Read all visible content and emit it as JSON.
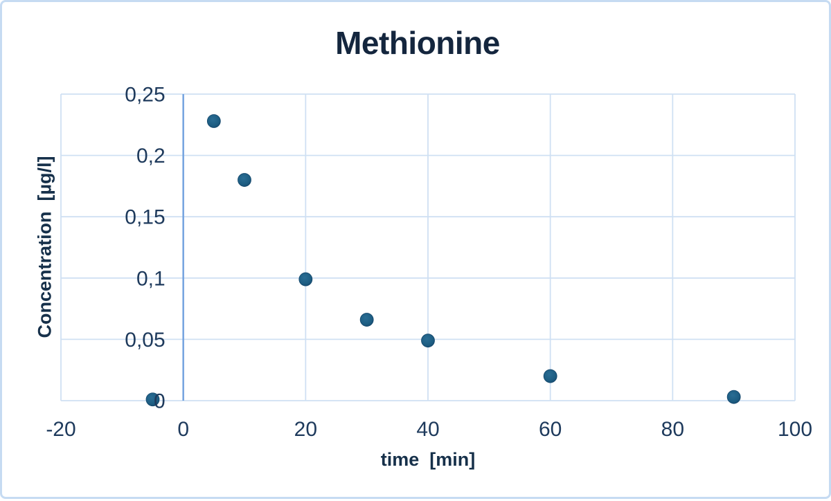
{
  "chart_data": {
    "type": "scatter",
    "title": "Methionine",
    "xlabel": "time  [min]",
    "ylabel": "Concentration  [µg/l]",
    "series": [
      {
        "name": "Methionine",
        "points": [
          {
            "x": -5,
            "y": 0.001
          },
          {
            "x": 5,
            "y": 0.228
          },
          {
            "x": 10,
            "y": 0.18
          },
          {
            "x": 20,
            "y": 0.099
          },
          {
            "x": 30,
            "y": 0.066
          },
          {
            "x": 40,
            "y": 0.049
          },
          {
            "x": 60,
            "y": 0.02
          },
          {
            "x": 90,
            "y": 0.003
          }
        ]
      }
    ],
    "xlim": [
      -20,
      100
    ],
    "ylim": [
      0,
      0.25
    ],
    "xticks": {
      "values": [
        -20,
        0,
        20,
        40,
        60,
        80,
        100
      ],
      "labels": [
        "-20",
        "0",
        "20",
        "40",
        "60",
        "80",
        "100"
      ]
    },
    "yticks": {
      "values": [
        0,
        0.05,
        0.1,
        0.15,
        0.2,
        0.25
      ],
      "labels": [
        "0",
        "0,05",
        "0,1",
        "0,15",
        "0,2",
        "0,25"
      ]
    },
    "grid": true,
    "legend": false,
    "decimal_separator": ",",
    "colors": {
      "marker": "#1d5d82",
      "marker_light": "#2a6d94",
      "marker_edge": "#14466b",
      "gridline": "#cfe0f3",
      "zero_axis": "#74a3df",
      "title_text": "#14263e",
      "axis_title_text": "#16304a",
      "tick_text": "#1e3a5c",
      "frame_border": "#c6dbf2",
      "background": "#ffffff"
    }
  }
}
